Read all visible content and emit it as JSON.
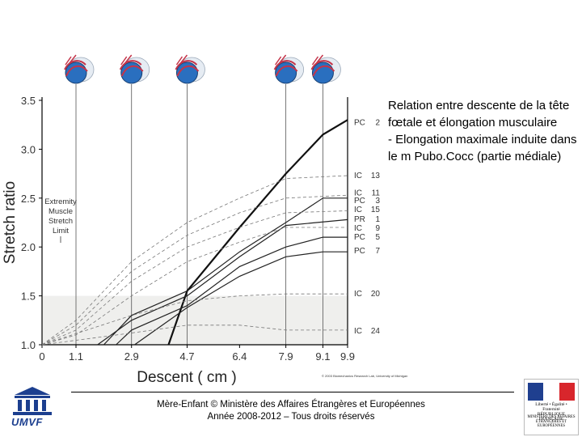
{
  "side_text": "Relation entre  descente de la tête fœtale et  élongation musculaire\n- Elongation maximale induite dans le m Pubo.Cocc (partie médiale)",
  "footer": {
    "line1": "Mère-Enfant © Ministère des Affaires Étrangères et Européennes",
    "line2": "Année 2008-2012 – Tous droits réservés"
  },
  "logo_left_label": "UMVF",
  "logo_right": {
    "top": "Liberté • Égalité • Fraternité",
    "republic": "RÉPUBLIQUE FRANÇAISE",
    "ministry": "MINISTÈRE DES AFFAIRES ÉTRANGÈRES ET EUROPÉENNES"
  },
  "copyright": "© 2003 Biomechanics Research Lab, University of Michigan",
  "colors": {
    "shade": "#efefed",
    "axis": "#000000",
    "flag_blue": "#1f3f8f",
    "flag_red": "#d8262c",
    "umvf_blue": "#1c3f8f"
  },
  "chart_data": {
    "type": "line",
    "xlabel": "Descent ( cm )",
    "ylabel": "Stretch ratio",
    "xlim": [
      0,
      9.9
    ],
    "ylim": [
      1.0,
      3.5
    ],
    "x_ticks": [
      0,
      1.1,
      2.9,
      4.7,
      6.4,
      7.9,
      9.1,
      9.9
    ],
    "x_tick_labels": [
      "0",
      "1.1",
      "2.9",
      "4.7",
      "6.4",
      "7.9",
      "9.1",
      "9.9"
    ],
    "y_ticks": [
      1.0,
      1.5,
      2.0,
      2.5,
      3.0,
      3.5
    ],
    "y_tick_labels": [
      "1.0",
      "1.5",
      "2.0",
      "2.5",
      "3.0",
      "3.5"
    ],
    "shaded_region": {
      "y_from": 1.0,
      "y_to": 1.5
    },
    "annotation": "Extremity\nMuscle\nStretch\nLimit",
    "head_icon_positions_cm": [
      1.1,
      2.9,
      4.7,
      7.9,
      9.1
    ],
    "series": [
      {
        "name": "PC",
        "num": "2",
        "style": "bold",
        "x": [
          4.1,
          4.7,
          6.4,
          7.9,
          9.1,
          9.9
        ],
        "y": [
          1.0,
          1.55,
          2.2,
          2.75,
          3.15,
          3.3
        ]
      },
      {
        "name": "IC",
        "num": "13",
        "style": "dashed",
        "x": [
          0,
          1.1,
          2.9,
          4.7,
          6.4,
          7.9,
          9.9
        ],
        "y": [
          1.0,
          1.25,
          1.85,
          2.25,
          2.5,
          2.7,
          2.73
        ]
      },
      {
        "name": "IC",
        "num": "11",
        "style": "dashed",
        "x": [
          0,
          1.1,
          2.9,
          4.7,
          6.4,
          7.9,
          9.9
        ],
        "y": [
          1.0,
          1.2,
          1.75,
          2.12,
          2.35,
          2.5,
          2.53
        ]
      },
      {
        "name": "PC",
        "num": "3",
        "style": "solid",
        "x": [
          2.0,
          2.9,
          4.7,
          6.4,
          7.9,
          9.1,
          9.9
        ],
        "y": [
          1.0,
          1.3,
          1.55,
          1.95,
          2.25,
          2.5,
          2.5
        ]
      },
      {
        "name": "IC",
        "num": "15",
        "style": "dashed",
        "x": [
          0,
          1.1,
          2.9,
          4.7,
          6.4,
          7.9,
          9.9
        ],
        "y": [
          1.0,
          1.15,
          1.65,
          2.0,
          2.2,
          2.35,
          2.37
        ]
      },
      {
        "name": "PR",
        "num": "1",
        "style": "solid",
        "x": [
          1.8,
          2.9,
          4.7,
          6.4,
          7.9,
          9.9
        ],
        "y": [
          1.0,
          1.25,
          1.5,
          1.9,
          2.22,
          2.28
        ]
      },
      {
        "name": "IC",
        "num": "9",
        "style": "dashed",
        "x": [
          0,
          1.1,
          2.9,
          4.7,
          6.4,
          7.9,
          9.9
        ],
        "y": [
          1.0,
          1.1,
          1.5,
          1.85,
          2.05,
          2.2,
          2.2
        ]
      },
      {
        "name": "PC",
        "num": "5",
        "style": "solid",
        "x": [
          2.4,
          2.9,
          4.7,
          6.4,
          7.9,
          9.1,
          9.9
        ],
        "y": [
          1.0,
          1.15,
          1.4,
          1.8,
          2.0,
          2.1,
          2.1
        ]
      },
      {
        "name": "PC",
        "num": "7",
        "style": "solid",
        "x": [
          3.0,
          4.7,
          6.4,
          7.9,
          9.1,
          9.9
        ],
        "y": [
          1.0,
          1.38,
          1.7,
          1.9,
          1.95,
          1.95
        ]
      },
      {
        "name": "IC",
        "num": "20",
        "style": "dashed",
        "x": [
          0,
          2.9,
          4.7,
          6.4,
          7.9,
          9.9
        ],
        "y": [
          1.0,
          1.3,
          1.45,
          1.5,
          1.52,
          1.52
        ]
      },
      {
        "name": "IC",
        "num": "24",
        "style": "dashed",
        "x": [
          0,
          2.9,
          4.7,
          6.4,
          7.9,
          9.9
        ],
        "y": [
          1.0,
          1.12,
          1.2,
          1.2,
          1.15,
          1.15
        ]
      }
    ],
    "right_labels": [
      {
        "name": "PC",
        "num": "2",
        "y": 3.28
      },
      {
        "name": "IC",
        "num": "13",
        "y": 2.74
      },
      {
        "name": "IC",
        "num": "11",
        "y": 2.56
      },
      {
        "name": "PC",
        "num": "3",
        "y": 2.48
      },
      {
        "name": "IC",
        "num": "15",
        "y": 2.39
      },
      {
        "name": "PR",
        "num": "1",
        "y": 2.29
      },
      {
        "name": "IC",
        "num": "9",
        "y": 2.2
      },
      {
        "name": "PC",
        "num": "5",
        "y": 2.11
      },
      {
        "name": "PC",
        "num": "7",
        "y": 1.97
      },
      {
        "name": "IC",
        "num": "20",
        "y": 1.53
      },
      {
        "name": "IC",
        "num": "24",
        "y": 1.15
      }
    ]
  }
}
